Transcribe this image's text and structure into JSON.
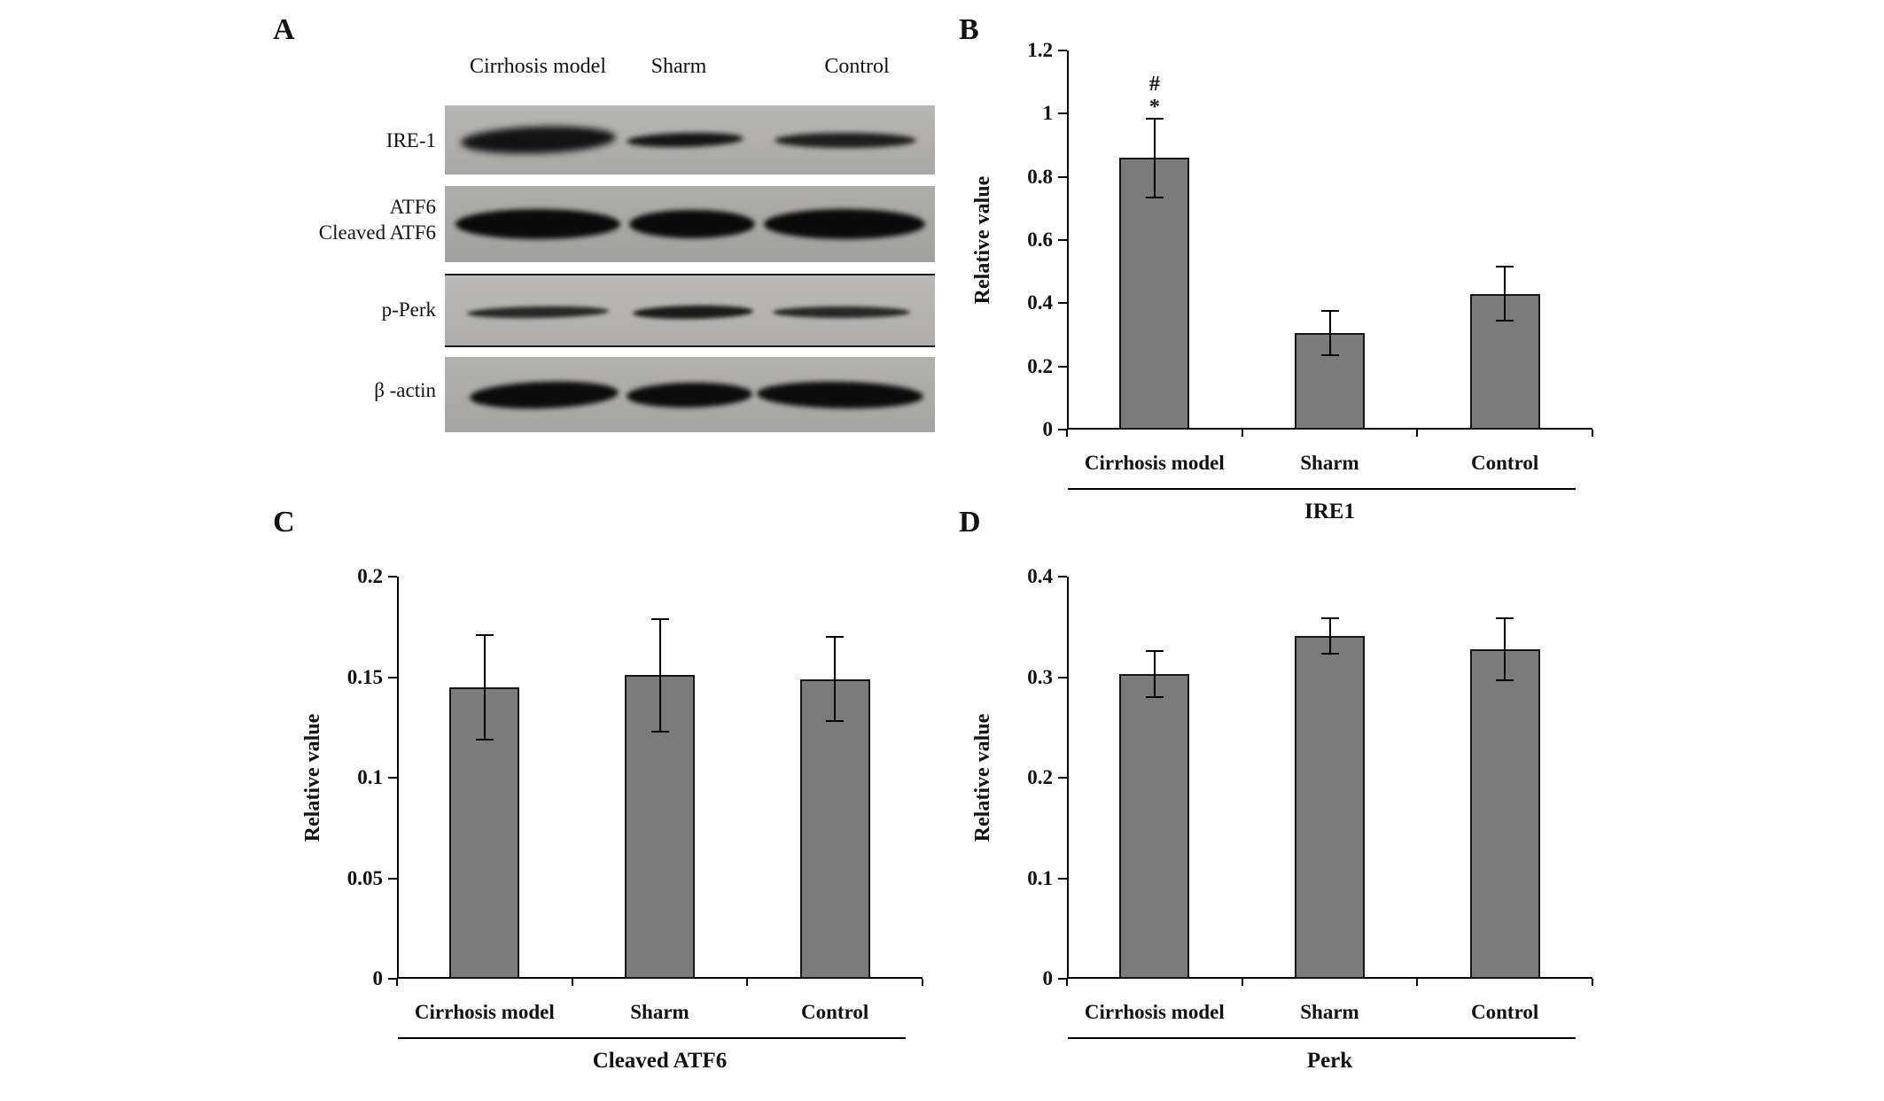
{
  "panels": {
    "a": {
      "label": "A",
      "col_headers": [
        "Cirrhosis model",
        "Sharm",
        "Control"
      ],
      "row_labels": [
        "IRE-1",
        "ATF6",
        "Cleaved ATF6",
        "p-Perk",
        "β -actin"
      ]
    },
    "b": {
      "label": "B"
    },
    "c": {
      "label": "C"
    },
    "d": {
      "label": "D"
    }
  },
  "chart_data": [
    {
      "id": "B",
      "type": "bar",
      "title": "IRE1",
      "ylabel": "Relative value",
      "ylim": [
        0,
        1.2
      ],
      "yticks": [
        "0",
        "0.2",
        "0.4",
        "0.6",
        "0.8",
        "1",
        "1.2"
      ],
      "categories": [
        "Cirrhosis model",
        "Sharm",
        "Control"
      ],
      "values": [
        0.86,
        0.305,
        0.43
      ],
      "errors": [
        0.125,
        0.07,
        0.085
      ],
      "annotations": [
        {
          "bar": 0,
          "symbols": [
            "#",
            "*"
          ]
        }
      ],
      "bar_color": "#7b7b7b",
      "grid": false,
      "legend": false
    },
    {
      "id": "C",
      "type": "bar",
      "title": "Cleaved ATF6",
      "ylabel": "Relative value",
      "ylim": [
        0,
        0.2
      ],
      "yticks": [
        "0",
        "0.05",
        "0.1",
        "0.15",
        "0.2"
      ],
      "categories": [
        "Cirrhosis model",
        "Sharm",
        "Control"
      ],
      "values": [
        0.145,
        0.151,
        0.149
      ],
      "errors": [
        0.026,
        0.028,
        0.021
      ],
      "annotations": [],
      "bar_color": "#7b7b7b",
      "grid": false,
      "legend": false
    },
    {
      "id": "D",
      "type": "bar",
      "title": "Perk",
      "ylabel": "Relative value",
      "ylim": [
        0,
        0.4
      ],
      "yticks": [
        "0",
        "0.1",
        "0.2",
        "0.3",
        "0.4"
      ],
      "categories": [
        "Cirrhosis model",
        "Sharm",
        "Control"
      ],
      "values": [
        0.303,
        0.341,
        0.328
      ],
      "errors": [
        0.023,
        0.018,
        0.031
      ],
      "annotations": [],
      "bar_color": "#7b7b7b",
      "grid": false,
      "legend": false
    }
  ]
}
